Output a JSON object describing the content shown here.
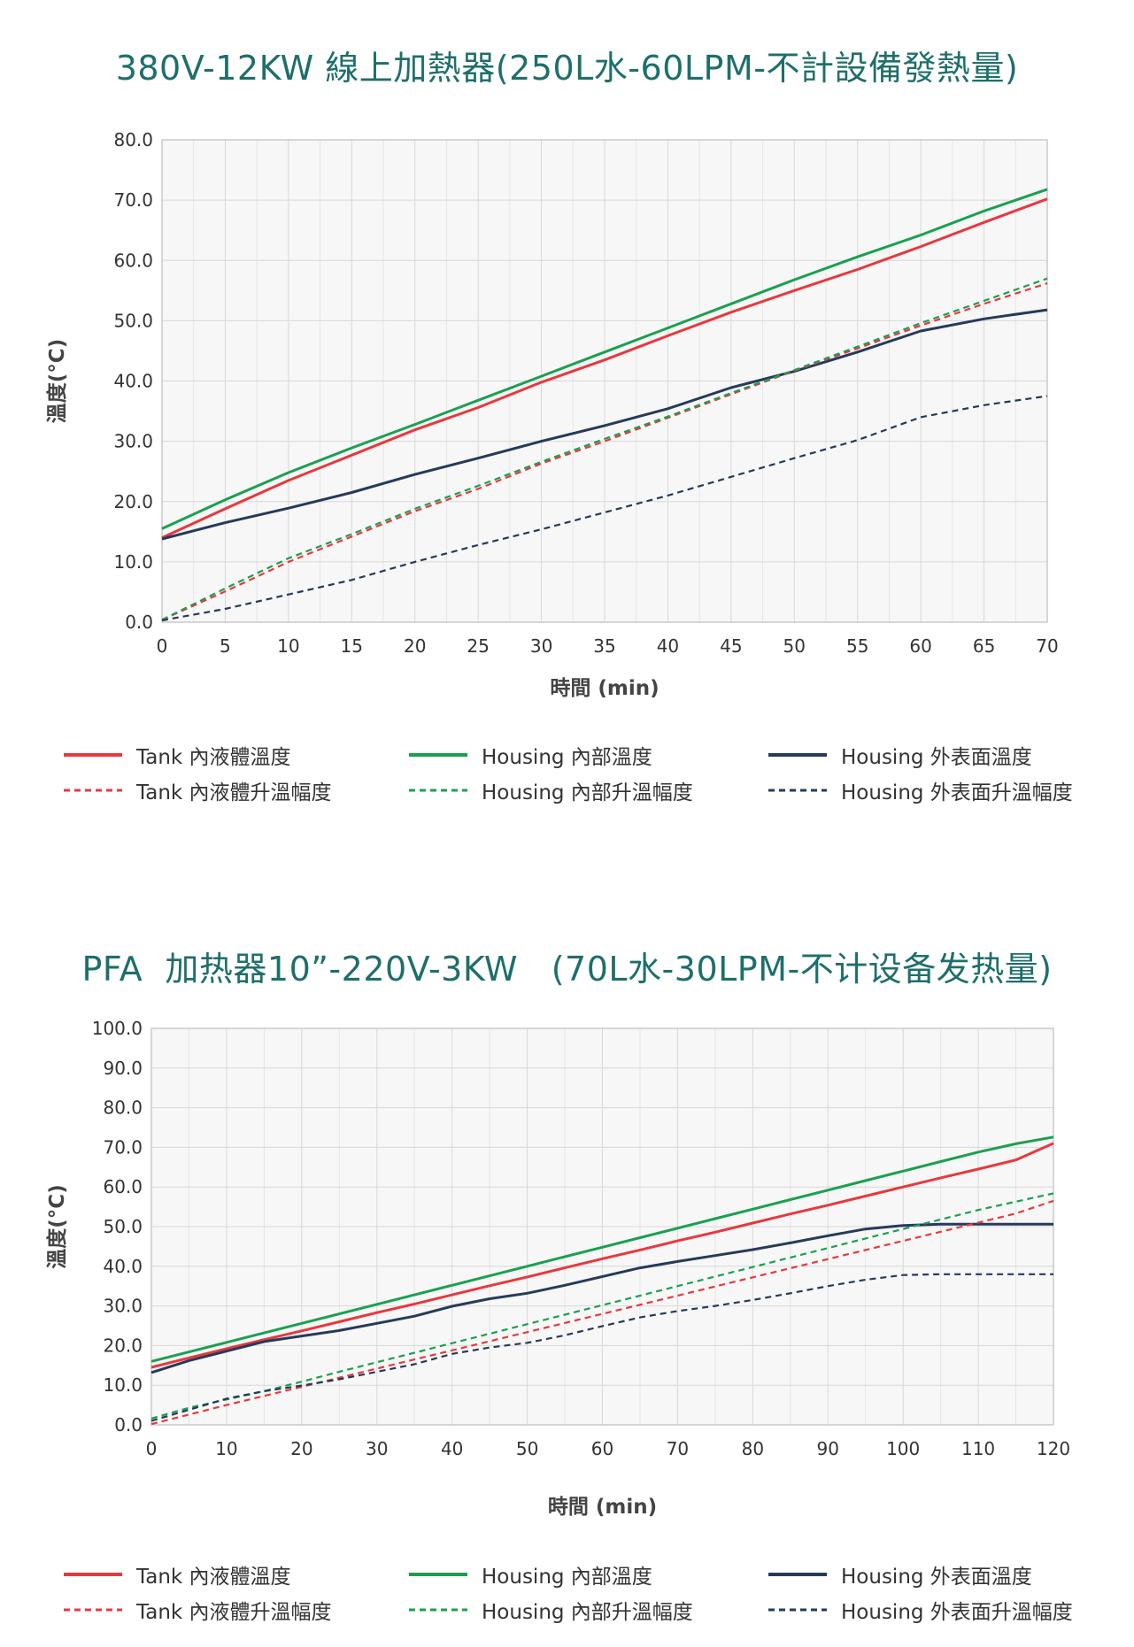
{
  "chart_data": [
    {
      "type": "line",
      "title": "380V-12KW 線上加熱器(250L水-60LPM-不計設備發熱量)",
      "xlabel": "時間 (min)",
      "ylabel": "溫度(°C)",
      "xlim": [
        0,
        70
      ],
      "ylim": [
        0,
        80
      ],
      "xticks": [
        "0",
        "5",
        "10",
        "15",
        "20",
        "25",
        "30",
        "35",
        "40",
        "45",
        "50",
        "55",
        "60",
        "65",
        "70"
      ],
      "yticks": [
        "0.0",
        "10.0",
        "20.0",
        "30.0",
        "40.0",
        "50.0",
        "60.0",
        "70.0",
        "80.0"
      ],
      "grid": true,
      "legend_position": "bottom",
      "x": [
        0,
        5,
        10,
        15,
        20,
        25,
        30,
        35,
        40,
        45,
        50,
        55,
        60,
        65,
        70
      ],
      "series": [
        {
          "name": "Tank 內液體溫度",
          "color": "#e8383d",
          "dash": false,
          "values": [
            14,
            18.8,
            23.5,
            27.7,
            31.9,
            35.6,
            39.8,
            43.5,
            47.5,
            51.4,
            55,
            58.5,
            62.3,
            66.3,
            70.2
          ]
        },
        {
          "name": "Housing 內部溫度",
          "color": "#1aa050",
          "dash": false,
          "values": [
            15.5,
            20.3,
            24.8,
            28.9,
            32.8,
            36.8,
            40.8,
            44.8,
            48.8,
            52.8,
            56.8,
            60.6,
            64.2,
            68.2,
            71.8
          ]
        },
        {
          "name": "Housing 外表面溫度",
          "color": "#263a5a",
          "dash": false,
          "values": [
            13.8,
            16.5,
            18.9,
            21.5,
            24.5,
            27.2,
            30,
            32.6,
            35.4,
            38.9,
            41.6,
            44.8,
            48.3,
            50.3,
            51.8
          ]
        },
        {
          "name": "Tank 內液體升溫幅度",
          "color": "#e8383d",
          "dash": true,
          "values": [
            0.4,
            5.1,
            10,
            14.2,
            18.4,
            22.1,
            26.3,
            30,
            33.9,
            37.8,
            41.7,
            45.4,
            49.2,
            52.8,
            56.2
          ]
        },
        {
          "name": "Housing 內部升溫幅度",
          "color": "#1aa050",
          "dash": true,
          "values": [
            0.4,
            5.6,
            10.6,
            14.6,
            18.8,
            22.6,
            26.6,
            30.4,
            34.1,
            38,
            41.8,
            45.7,
            49.6,
            53.3,
            57
          ]
        },
        {
          "name": "Housing 外表面升溫幅度",
          "color": "#263a5a",
          "dash": true,
          "values": [
            0.3,
            2.2,
            4.6,
            7,
            10,
            12.8,
            15.4,
            18.2,
            21,
            24.1,
            27.2,
            30.2,
            34,
            36,
            37.5
          ]
        }
      ]
    },
    {
      "type": "line",
      "title": "PFA  加热器10”-220V-3KW   (70L水-30LPM-不计设备发热量)",
      "xlabel": "時間 (min)",
      "ylabel": "溫度(°C)",
      "xlim": [
        0,
        120
      ],
      "ylim": [
        0,
        100
      ],
      "xticks": [
        "0",
        "10",
        "20",
        "30",
        "40",
        "50",
        "60",
        "70",
        "80",
        "90",
        "100",
        "110",
        "120"
      ],
      "yticks": [
        "0.0",
        "10.0",
        "20.0",
        "30.0",
        "40.0",
        "50.0",
        "60.0",
        "70.0",
        "80.0",
        "90.0",
        "100.0"
      ],
      "grid": true,
      "legend_position": "bottom",
      "x": [
        0,
        5,
        10,
        15,
        20,
        25,
        30,
        35,
        40,
        45,
        50,
        55,
        60,
        65,
        70,
        75,
        80,
        85,
        90,
        95,
        100,
        105,
        110,
        115,
        120
      ],
      "series": [
        {
          "name": "Tank 內液體溫度",
          "color": "#e8383d",
          "dash": false,
          "values": [
            14.5,
            16.9,
            19.2,
            21.5,
            23.7,
            26,
            28.3,
            30.5,
            32.8,
            35.1,
            37.3,
            39.6,
            41.9,
            44.1,
            46.4,
            48.6,
            50.9,
            53.2,
            55.4,
            57.7,
            60,
            62.3,
            64.5,
            66.8,
            71
          ]
        },
        {
          "name": "Housing 內部溫度",
          "color": "#1aa050",
          "dash": false,
          "values": [
            16,
            18.4,
            20.8,
            23.2,
            25.6,
            28,
            30.4,
            32.8,
            35.2,
            37.6,
            40,
            42.4,
            44.8,
            47.2,
            49.6,
            52,
            54.4,
            56.8,
            59.2,
            61.6,
            64,
            66.4,
            68.8,
            70.9,
            72.6
          ]
        },
        {
          "name": "Housing 外表面溫度",
          "color": "#263a5a",
          "dash": false,
          "values": [
            13.2,
            16.2,
            18.6,
            21,
            22.4,
            23.8,
            25.6,
            27.4,
            29.9,
            31.8,
            33.2,
            35.2,
            37.4,
            39.6,
            41.2,
            42.7,
            44.2,
            45.9,
            47.7,
            49.4,
            50.3,
            50.6,
            50.6,
            50.6,
            50.6
          ]
        },
        {
          "name": "Tank 內液體升溫幅度",
          "color": "#e8383d",
          "dash": true,
          "values": [
            0.2,
            2.6,
            5,
            7.3,
            9.6,
            11.9,
            14.2,
            16.5,
            18.8,
            21.1,
            23.4,
            25.7,
            28,
            30.3,
            32.6,
            34.9,
            37.2,
            39.5,
            41.8,
            44.1,
            46.4,
            48.7,
            51,
            53.3,
            56.5
          ]
        },
        {
          "name": "Housing 內部升溫幅度",
          "color": "#1aa050",
          "dash": true,
          "values": [
            1.6,
            4.3,
            6.4,
            8.5,
            10.9,
            13.4,
            15.8,
            18.2,
            20.6,
            23,
            25.4,
            27.8,
            30.2,
            32.6,
            35,
            37.4,
            39.8,
            42.2,
            44.6,
            47,
            49.4,
            51.8,
            54.2,
            56.3,
            58.4
          ]
        },
        {
          "name": "Housing 外表面升溫幅度",
          "color": "#263a5a",
          "dash": true,
          "values": [
            1,
            3.8,
            6.6,
            8.5,
            9.9,
            11.5,
            13.4,
            15.3,
            17.9,
            19.5,
            20.7,
            22.6,
            24.9,
            27.1,
            28.7,
            30,
            31.5,
            33.2,
            35,
            36.6,
            37.8,
            38,
            38,
            38,
            38
          ]
        }
      ]
    }
  ]
}
